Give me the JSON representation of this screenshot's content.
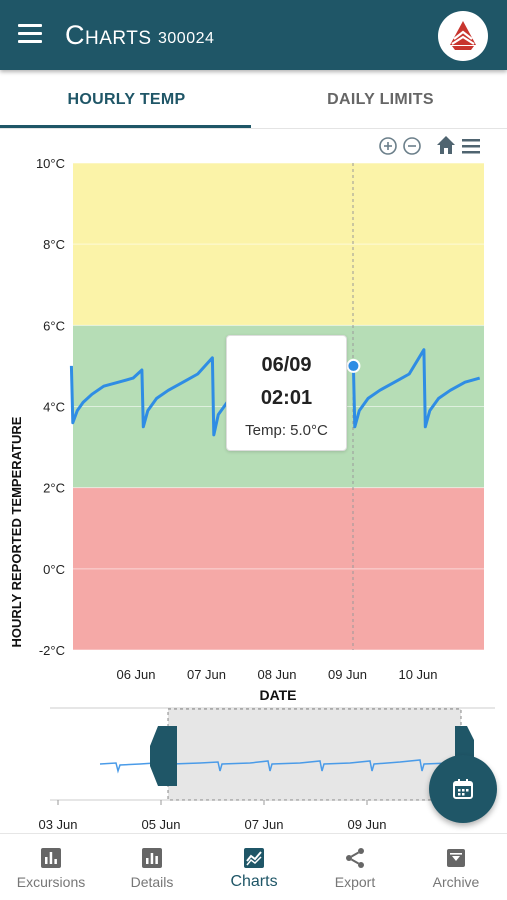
{
  "app": {
    "title": "Charts",
    "device_id": "300024"
  },
  "tabs": [
    {
      "label": "HOURLY TEMP",
      "active": true
    },
    {
      "label": "DAILY LIMITS",
      "active": false
    }
  ],
  "colors": {
    "primary": "#1f5667",
    "band_high": "#fbf3a8",
    "band_ok": "#b6ddb6",
    "band_low": "#f5a9a7",
    "series": "#2f8de4",
    "logo_red": "#c8352e"
  },
  "toolbar": {
    "icons": [
      "zoom-in-icon",
      "zoom-out-icon",
      "home-icon",
      "menu-icon"
    ]
  },
  "chart_data": {
    "type": "line",
    "title": "",
    "xlabel": "DATE",
    "ylabel": "HOURLY REPORTED TEMPERATURE",
    "ylim": [
      -2,
      10
    ],
    "y_ticks": [
      "10°C",
      "8°C",
      "6°C",
      "4°C",
      "2°C",
      "0°C",
      "-2°C"
    ],
    "x_ticks": [
      "06 Jun",
      "07 Jun",
      "08 Jun",
      "09 Jun",
      "10 Jun"
    ],
    "bands": [
      {
        "from": 6,
        "to": 10,
        "color": "#fbf3a8"
      },
      {
        "from": 2,
        "to": 6,
        "color": "#b6ddb6"
      },
      {
        "from": -2,
        "to": 2,
        "color": "#f5a9a7"
      }
    ],
    "series": [
      {
        "values": [
          [
            "06-05 02:00",
            5.0
          ],
          [
            "06-05 02:30",
            3.6
          ],
          [
            "06-05 04:00",
            3.9
          ],
          [
            "06-05 06:00",
            4.1
          ],
          [
            "06-05 09:00",
            4.3
          ],
          [
            "06-05 13:00",
            4.5
          ],
          [
            "06-05 18:00",
            4.6
          ],
          [
            "06-05 23:00",
            4.7
          ],
          [
            "06-06 02:00",
            4.9
          ],
          [
            "06-06 02:30",
            3.5
          ],
          [
            "06-06 04:00",
            3.9
          ],
          [
            "06-06 07:00",
            4.2
          ],
          [
            "06-06 11:00",
            4.4
          ],
          [
            "06-06 16:00",
            4.6
          ],
          [
            "06-06 21:00",
            4.8
          ],
          [
            "06-07 02:00",
            5.2
          ],
          [
            "06-07 02:30",
            3.3
          ],
          [
            "06-07 04:00",
            3.8
          ],
          [
            "06-07 07:00",
            4.1
          ],
          [
            "06-09 02:01",
            5.0
          ],
          [
            "06-09 02:30",
            3.5
          ],
          [
            "06-09 04:00",
            3.9
          ],
          [
            "06-09 07:00",
            4.2
          ],
          [
            "06-09 11:00",
            4.4
          ],
          [
            "06-09 16:00",
            4.6
          ],
          [
            "06-09 21:00",
            4.8
          ],
          [
            "06-10 02:00",
            5.4
          ],
          [
            "06-10 02:30",
            3.5
          ],
          [
            "06-10 04:00",
            3.9
          ],
          [
            "06-10 07:00",
            4.2
          ],
          [
            "06-10 11:00",
            4.4
          ],
          [
            "06-10 16:00",
            4.6
          ],
          [
            "06-10 21:00",
            4.7
          ]
        ]
      }
    ],
    "legend": "none",
    "grid": true
  },
  "tooltip": {
    "date": "06/09",
    "time": "02:01",
    "temp": "Temp: 5.0°C"
  },
  "navigator": {
    "x_ticks": [
      "03 Jun",
      "05 Jun",
      "07 Jun",
      "09 Jun"
    ],
    "selection": [
      "05 Jun",
      "10 Jun"
    ]
  },
  "fab": {
    "icon": "calendar-icon"
  },
  "bottom_nav": [
    {
      "label": "Excursions",
      "icon": "bar-chart-icon",
      "active": false
    },
    {
      "label": "Details",
      "icon": "details-chart-icon",
      "active": false
    },
    {
      "label": "Charts",
      "icon": "line-chart-icon",
      "active": true
    },
    {
      "label": "Export",
      "icon": "share-icon",
      "active": false
    },
    {
      "label": "Archive",
      "icon": "archive-icon",
      "active": false
    }
  ]
}
